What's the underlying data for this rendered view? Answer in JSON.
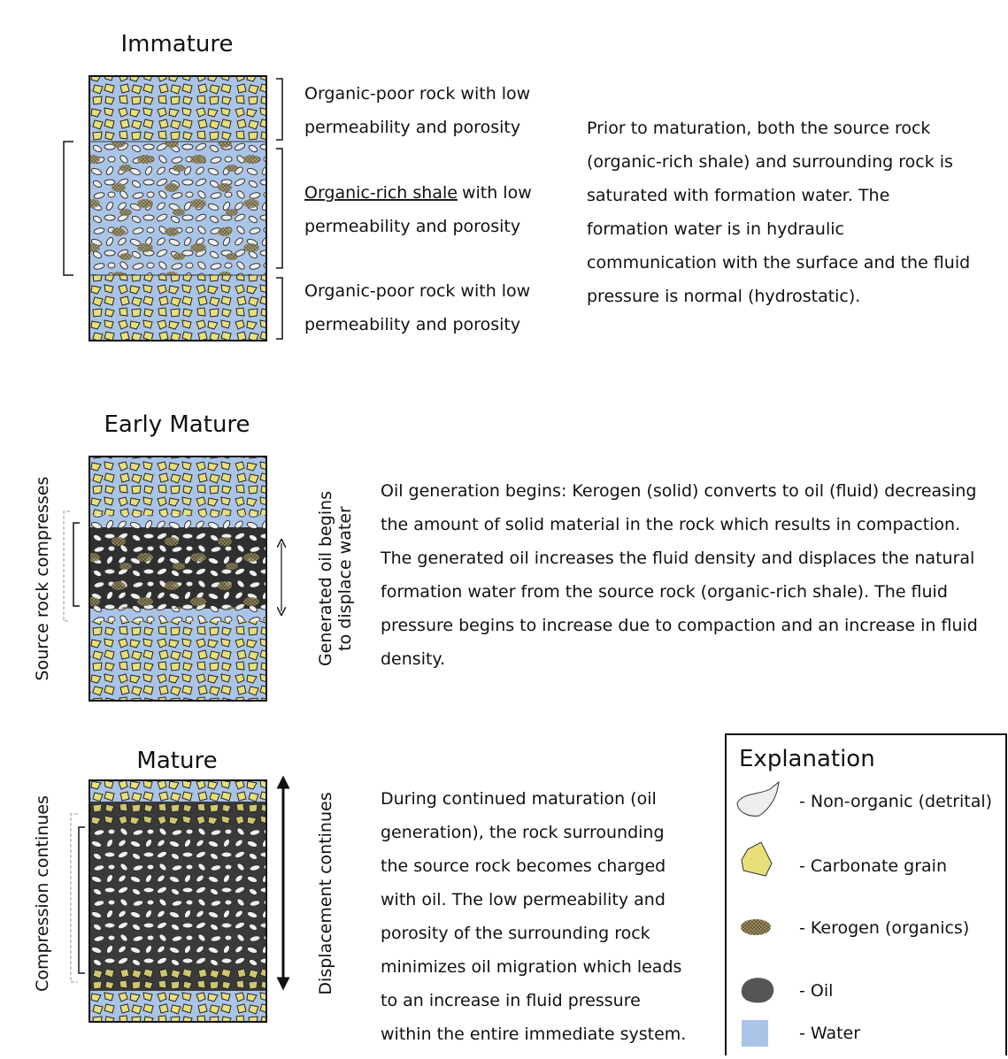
{
  "immature": {
    "title": "Immature",
    "labels": [
      {
        "line1": "Organic-poor rock with low",
        "line2": "permeability and porosity"
      },
      {
        "underlined": "Organic-rich shale",
        "rest": "with low",
        "line2": "permeability and porosity"
      },
      {
        "line1": "Organic-poor rock with low",
        "line2": "permeability and porosity"
      }
    ],
    "description": [
      "Prior to maturation, both the source rock",
      "(organic-rich shale) and surrounding rock is",
      "saturated with formation water.  The",
      "formation water is in hydraulic",
      "communication with the surface and the fluid",
      "pressure is normal (hydrostatic)."
    ]
  },
  "early_mature": {
    "title": "Early Mature",
    "left_label": "Source rock compresses",
    "right_label": [
      "Generated oil begins",
      "to displace water"
    ],
    "description": [
      "Oil generation begins: Kerogen (solid) converts to oil (fluid) decreasing",
      "the amount of solid material in the rock which results in compaction.",
      "The generated oil increases the fluid density and displaces the natural",
      "formation water from the source rock (organic-rich shale). The fluid",
      "pressure begins to increase due to compaction and an increase in fluid",
      "density."
    ]
  },
  "mature": {
    "title": "Mature",
    "left_label": "Compression continues",
    "right_label": "Displacement continues",
    "description": [
      "During continued maturation (oil",
      "generation), the rock surrounding",
      "the source rock becomes charged",
      "with oil.  The low permeability and",
      "porosity of the surrounding rock",
      "minimizes oil migration which leads",
      "to an increase in fluid pressure",
      "within the entire immediate system."
    ]
  },
  "explanation": {
    "title": "Explanation",
    "items": [
      "- Non-organic (detrital)",
      "- Carbonate grain",
      "- Kerogen (organics)",
      "- Oil",
      "- Water"
    ]
  }
}
